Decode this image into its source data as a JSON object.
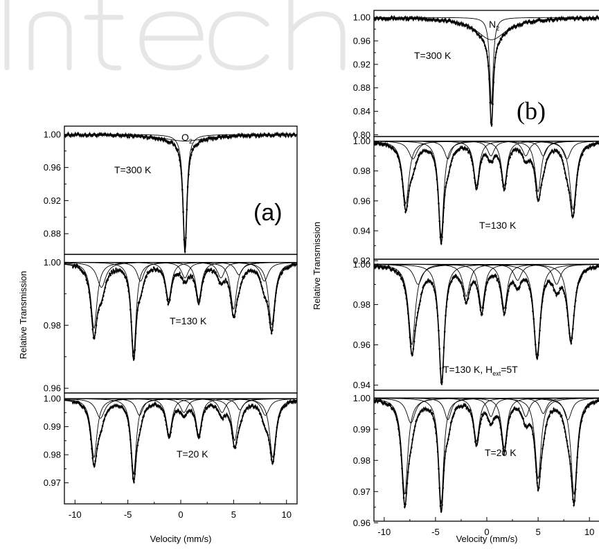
{
  "chart_data": [
    {
      "type": "scatter",
      "panel_label": "(a)",
      "xlabel": "Velocity (mm/s)",
      "ylabel": "Relative Transmission",
      "xlim": [
        -11,
        11
      ],
      "xticks": [
        -10,
        -5,
        0,
        5,
        10
      ],
      "grid": false,
      "legend": "none",
      "subpanels": [
        {
          "label": "T=300 K",
          "species": "O2",
          "ylim": [
            0.855,
            1.01
          ],
          "yticks": [
            1.0,
            0.96,
            0.92,
            0.88
          ],
          "ytick_labels": [
            "1.00",
            "0.96",
            "0.92",
            "0.88"
          ],
          "baseline": 1.0,
          "lines": [
            {
              "center": 0.4,
              "depth": 0.135,
              "hwhm": 0.22
            },
            {
              "center": 0.4,
              "depth": 0.008,
              "hwhm": 2.5
            }
          ]
        },
        {
          "label": "T=130 K",
          "ylim": [
            0.9585,
            1.0025
          ],
          "yticks": [
            1.0,
            0.98,
            0.96
          ],
          "ytick_labels": [
            "1.00",
            "0.98",
            "0.96"
          ],
          "baseline": 1.0,
          "lines": [
            {
              "center": -8.2,
              "depth": 0.021,
              "hwhm": 0.35
            },
            {
              "center": -4.45,
              "depth": 0.029,
              "hwhm": 0.28
            },
            {
              "center": -1.15,
              "depth": 0.012,
              "hwhm": 0.33
            },
            {
              "center": 1.7,
              "depth": 0.012,
              "hwhm": 0.33
            },
            {
              "center": 5.0,
              "depth": 0.015,
              "hwhm": 0.35
            },
            {
              "center": 8.6,
              "depth": 0.02,
              "hwhm": 0.36
            },
            {
              "center": -7.5,
              "depth": 0.008,
              "hwhm": 0.5
            },
            {
              "center": -3.8,
              "depth": 0.006,
              "hwhm": 0.4
            },
            {
              "center": 0.4,
              "depth": 0.005,
              "hwhm": 0.4
            },
            {
              "center": 3.8,
              "depth": 0.005,
              "hwhm": 0.4
            },
            {
              "center": 5.5,
              "depth": 0.004,
              "hwhm": 0.4
            },
            {
              "center": 7.9,
              "depth": 0.006,
              "hwhm": 0.45
            }
          ]
        },
        {
          "label": "T=20 K",
          "ylim": [
            0.9625,
            1.002
          ],
          "yticks": [
            1.0,
            0.99,
            0.98,
            0.97
          ],
          "ytick_labels": [
            "1.00",
            "0.99",
            "0.98",
            "0.97"
          ],
          "baseline": 1.0,
          "lines": [
            {
              "center": -8.2,
              "depth": 0.021,
              "hwhm": 0.35
            },
            {
              "center": -4.45,
              "depth": 0.027,
              "hwhm": 0.3
            },
            {
              "center": -1.1,
              "depth": 0.013,
              "hwhm": 0.33
            },
            {
              "center": 1.7,
              "depth": 0.013,
              "hwhm": 0.33
            },
            {
              "center": 5.1,
              "depth": 0.015,
              "hwhm": 0.35
            },
            {
              "center": 8.7,
              "depth": 0.021,
              "hwhm": 0.36
            },
            {
              "center": -7.6,
              "depth": 0.007,
              "hwhm": 0.5
            },
            {
              "center": -3.9,
              "depth": 0.006,
              "hwhm": 0.4
            },
            {
              "center": 0.3,
              "depth": 0.005,
              "hwhm": 0.4
            },
            {
              "center": 3.9,
              "depth": 0.005,
              "hwhm": 0.4
            },
            {
              "center": 5.6,
              "depth": 0.004,
              "hwhm": 0.4
            },
            {
              "center": 8.0,
              "depth": 0.006,
              "hwhm": 0.45
            }
          ]
        }
      ]
    },
    {
      "type": "scatter",
      "panel_label": "(b)",
      "xlabel": "Velocity (mm/s)",
      "ylabel": "Relative Transmission",
      "xlim": [
        -11,
        11
      ],
      "xticks": [
        -10,
        -5,
        0,
        5,
        10
      ],
      "grid": false,
      "legend": "none",
      "subpanels": [
        {
          "label": "T=300 K",
          "species": "N2",
          "ylim": [
            0.797,
            1.012
          ],
          "yticks": [
            1.0,
            0.96,
            0.92,
            0.88,
            0.84,
            0.8
          ],
          "ytick_labels": [
            "1.00",
            "0.96",
            "0.92",
            "0.88",
            "0.84",
            "0.80"
          ],
          "baseline": 1.0,
          "lines": [
            {
              "center": 0.45,
              "depth": 0.15,
              "hwhm": 0.2
            },
            {
              "center": 0.45,
              "depth": 0.038,
              "hwhm": 1.8
            }
          ]
        },
        {
          "label": "T=130 K",
          "ylim": [
            0.921,
            1.003
          ],
          "yticks": [
            1.0,
            0.98,
            0.96,
            0.94,
            0.92
          ],
          "ytick_labels": [
            "1.00",
            "0.98",
            "0.96",
            "0.94",
            "0.92"
          ],
          "baseline": 1.0,
          "lines": [
            {
              "center": -7.9,
              "depth": 0.042,
              "hwhm": 0.38
            },
            {
              "center": -4.45,
              "depth": 0.064,
              "hwhm": 0.3
            },
            {
              "center": -1.0,
              "depth": 0.03,
              "hwhm": 0.33
            },
            {
              "center": 1.7,
              "depth": 0.03,
              "hwhm": 0.33
            },
            {
              "center": 5.0,
              "depth": 0.034,
              "hwhm": 0.35
            },
            {
              "center": 8.4,
              "depth": 0.046,
              "hwhm": 0.38
            },
            {
              "center": -7.2,
              "depth": 0.012,
              "hwhm": 0.5
            },
            {
              "center": -3.8,
              "depth": 0.012,
              "hwhm": 0.4
            },
            {
              "center": 0.4,
              "depth": 0.01,
              "hwhm": 0.4
            },
            {
              "center": 3.8,
              "depth": 0.01,
              "hwhm": 0.4
            },
            {
              "center": 5.5,
              "depth": 0.01,
              "hwhm": 0.4
            },
            {
              "center": 7.8,
              "depth": 0.012,
              "hwhm": 0.45
            }
          ]
        },
        {
          "label": "T=130 K, Hext=5T",
          "label_main": "T=130 K, H",
          "label_sub": "ext",
          "label_tail": "=5T",
          "ylim": [
            0.9375,
            1.0025
          ],
          "yticks": [
            1.0,
            0.98,
            0.96,
            0.94
          ],
          "ytick_labels": [
            "1.00",
            "0.98",
            "0.96",
            "0.94"
          ],
          "baseline": 1.0,
          "lines": [
            {
              "center": -7.3,
              "depth": 0.04,
              "hwhm": 0.4
            },
            {
              "center": -4.4,
              "depth": 0.058,
              "hwhm": 0.32
            },
            {
              "center": -2.0,
              "depth": 0.016,
              "hwhm": 0.4
            },
            {
              "center": -0.5,
              "depth": 0.022,
              "hwhm": 0.35
            },
            {
              "center": 1.7,
              "depth": 0.022,
              "hwhm": 0.35
            },
            {
              "center": 4.9,
              "depth": 0.045,
              "hwhm": 0.38
            },
            {
              "center": 8.2,
              "depth": 0.037,
              "hwhm": 0.4
            },
            {
              "center": -6.7,
              "depth": 0.01,
              "hwhm": 0.5
            },
            {
              "center": 3.0,
              "depth": 0.008,
              "hwhm": 0.45
            },
            {
              "center": 6.8,
              "depth": 0.01,
              "hwhm": 0.45
            }
          ]
        },
        {
          "label": "T=20 K",
          "ylim": [
            0.9605,
            1.0025
          ],
          "yticks": [
            1.0,
            0.99,
            0.98,
            0.97,
            0.96
          ],
          "ytick_labels": [
            "1.00",
            "0.99",
            "0.98",
            "0.97",
            "0.96"
          ],
          "baseline": 1.0,
          "lines": [
            {
              "center": -8.0,
              "depth": 0.031,
              "hwhm": 0.36
            },
            {
              "center": -4.45,
              "depth": 0.034,
              "hwhm": 0.3
            },
            {
              "center": -1.0,
              "depth": 0.014,
              "hwhm": 0.33
            },
            {
              "center": 1.7,
              "depth": 0.016,
              "hwhm": 0.33
            },
            {
              "center": 5.0,
              "depth": 0.026,
              "hwhm": 0.35
            },
            {
              "center": 8.5,
              "depth": 0.031,
              "hwhm": 0.36
            },
            {
              "center": -7.4,
              "depth": 0.008,
              "hwhm": 0.5
            },
            {
              "center": -3.8,
              "depth": 0.007,
              "hwhm": 0.4
            },
            {
              "center": 0.4,
              "depth": 0.006,
              "hwhm": 0.4
            },
            {
              "center": 3.8,
              "depth": 0.006,
              "hwhm": 0.4
            },
            {
              "center": 5.5,
              "depth": 0.005,
              "hwhm": 0.4
            },
            {
              "center": 7.9,
              "depth": 0.007,
              "hwhm": 0.45
            }
          ]
        }
      ]
    }
  ]
}
